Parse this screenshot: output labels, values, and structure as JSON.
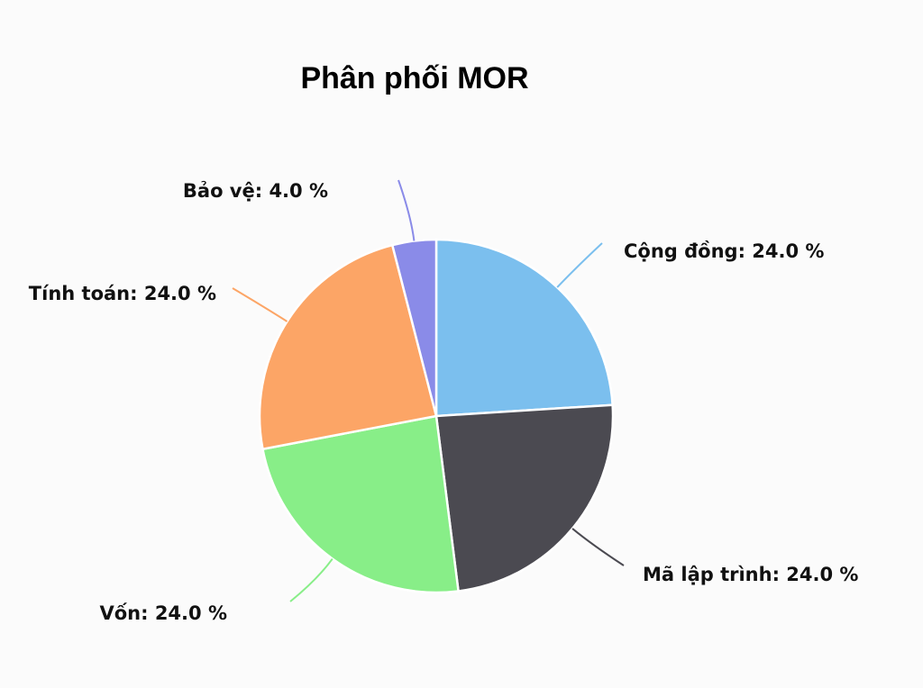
{
  "chart_data": {
    "type": "pie",
    "title": "Phân phối MOR",
    "slices": [
      {
        "name": "Cộng đồng",
        "value": 24.0,
        "label": "Cộng đồng: 24.0 %",
        "color": "#7bbfee"
      },
      {
        "name": "Mã lập trình",
        "value": 24.0,
        "label": "Mã lập trình: 24.0 %",
        "color": "#4b4a51"
      },
      {
        "name": "Vốn",
        "value": 24.0,
        "label": "Vốn: 24.0 %",
        "color": "#88ee88"
      },
      {
        "name": "Tính toán",
        "value": 24.0,
        "label": "Tính toán: 24.0 %",
        "color": "#fca566"
      },
      {
        "name": "Bảo vệ",
        "value": 4.0,
        "label": "Bảo vệ: 4.0 %",
        "color": "#8a8be8"
      }
    ],
    "start_angle_deg": 0,
    "direction": "clockwise",
    "legend": "none"
  }
}
